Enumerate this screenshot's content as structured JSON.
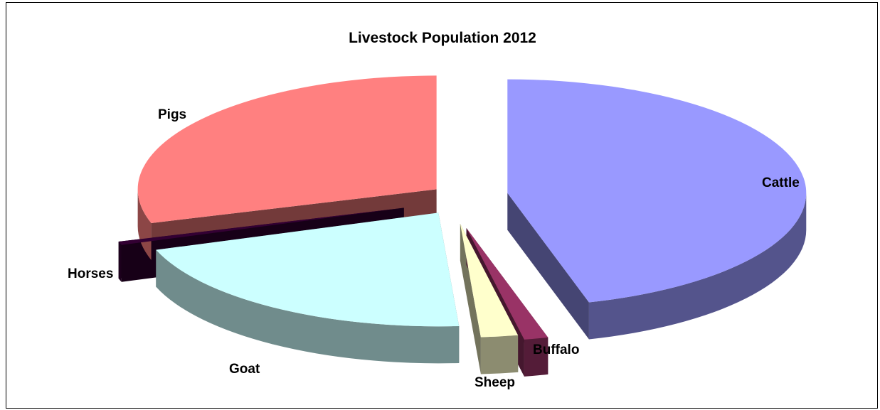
{
  "chart_data": {
    "type": "pie",
    "style": "3d-exploded",
    "title": "Livestock Population 2012",
    "categories": [
      "Cattle",
      "Buffalo",
      "Sheep",
      "Goat",
      "Horses",
      "Pigs"
    ],
    "values": [
      45.6,
      1.3,
      2.0,
      20.8,
      0.5,
      29.8
    ],
    "unit": "percent share",
    "legend": "none (category labels beside slices)",
    "colors": {
      "Cattle": "#9999FF",
      "Buffalo": "#993366",
      "Sheep": "#FFFFCC",
      "Goat": "#CCFFFF",
      "Horses": "#330033",
      "Pigs": "#FF8080"
    }
  }
}
